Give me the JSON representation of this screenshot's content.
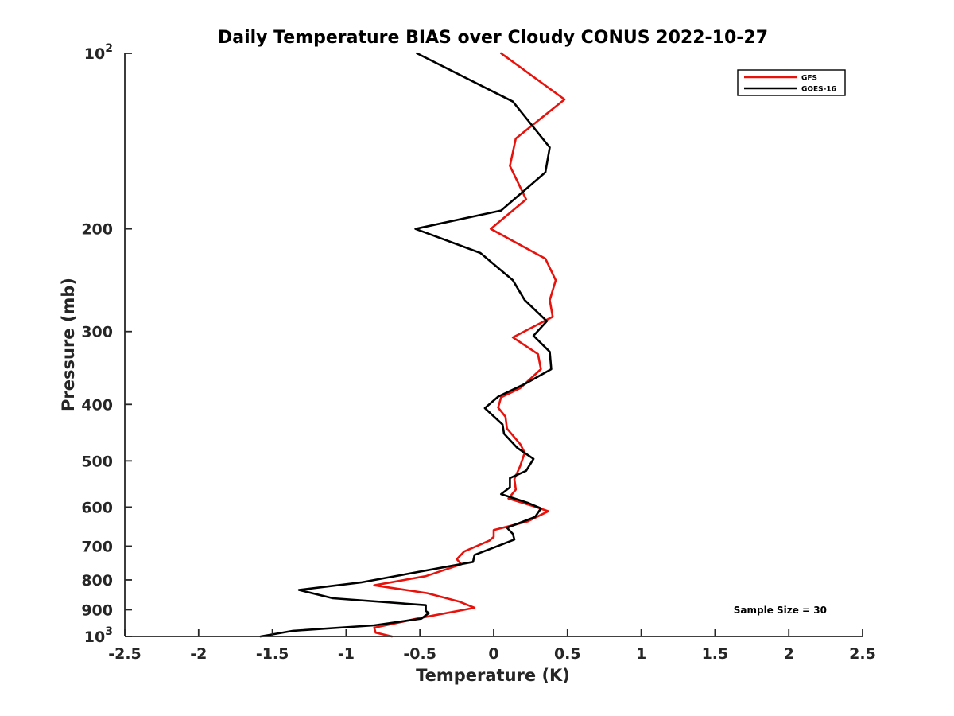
{
  "chart_data": {
    "type": "line",
    "title": "Daily Temperature BIAS over Cloudy CONUS 2022-10-27",
    "xlabel": "Temperature (K)",
    "ylabel": "Pressure (mb)",
    "xlim": [
      -2.5,
      2.5
    ],
    "ylim": [
      100,
      1000
    ],
    "y_scale": "log",
    "y_reversed": true,
    "x_ticks": [
      -2.5,
      -2,
      -1.5,
      -1,
      -0.5,
      0,
      0.5,
      1,
      1.5,
      2,
      2.5
    ],
    "x_tick_labels": [
      "-2.5",
      "-2",
      "-1.5",
      "-1",
      "-0.5",
      "0",
      "0.5",
      "1",
      "1.5",
      "2",
      "2.5"
    ],
    "y_ticks": [
      {
        "value": 100,
        "base": "10",
        "exp": "2"
      },
      {
        "value": 200,
        "label": "200"
      },
      {
        "value": 300,
        "label": "300"
      },
      {
        "value": 400,
        "label": "400"
      },
      {
        "value": 500,
        "label": "500"
      },
      {
        "value": 600,
        "label": "600"
      },
      {
        "value": 700,
        "label": "700"
      },
      {
        "value": 800,
        "label": "800"
      },
      {
        "value": 900,
        "label": "900"
      },
      {
        "value": 1000,
        "base": "10",
        "exp": "3"
      }
    ],
    "grid": false,
    "legend_position": "top-right",
    "annotation": "Sample Size = 30",
    "series": [
      {
        "name": "GFS",
        "color": "#e8120c",
        "points": [
          [
            0.05,
            100
          ],
          [
            0.48,
            120
          ],
          [
            0.15,
            140
          ],
          [
            0.11,
            156
          ],
          [
            0.22,
            178
          ],
          [
            -0.02,
            200
          ],
          [
            0.35,
            225
          ],
          [
            0.42,
            245
          ],
          [
            0.38,
            265
          ],
          [
            0.4,
            283
          ],
          [
            0.13,
            307
          ],
          [
            0.3,
            328
          ],
          [
            0.32,
            348
          ],
          [
            0.18,
            375
          ],
          [
            0.05,
            389
          ],
          [
            0.03,
            405
          ],
          [
            0.08,
            420
          ],
          [
            0.09,
            440
          ],
          [
            0.18,
            468
          ],
          [
            0.21,
            484
          ],
          [
            0.18,
            510
          ],
          [
            0.14,
            537
          ],
          [
            0.15,
            560
          ],
          [
            0.1,
            580
          ],
          [
            0.27,
            598
          ],
          [
            0.37,
            610
          ],
          [
            0.23,
            635
          ],
          [
            0.0,
            657
          ],
          [
            0.0,
            675
          ],
          [
            -0.03,
            685
          ],
          [
            -0.2,
            715
          ],
          [
            -0.25,
            737
          ],
          [
            -0.22,
            752
          ],
          [
            -0.46,
            788
          ],
          [
            -0.81,
            817
          ],
          [
            -0.45,
            843
          ],
          [
            -0.23,
            872
          ],
          [
            -0.13,
            893
          ],
          [
            -0.51,
            931
          ],
          [
            -0.81,
            966
          ],
          [
            -0.8,
            985
          ],
          [
            -0.69,
            1000
          ]
        ]
      },
      {
        "name": "GOES-16",
        "color": "#000000",
        "points": [
          [
            -0.52,
            100
          ],
          [
            0.13,
            121
          ],
          [
            0.38,
            145
          ],
          [
            0.35,
            160
          ],
          [
            0.05,
            186
          ],
          [
            -0.53,
            200
          ],
          [
            -0.09,
            220
          ],
          [
            0.13,
            245
          ],
          [
            0.21,
            265
          ],
          [
            0.36,
            288
          ],
          [
            0.27,
            305
          ],
          [
            0.38,
            325
          ],
          [
            0.39,
            348
          ],
          [
            0.22,
            368
          ],
          [
            0.03,
            388
          ],
          [
            -0.06,
            406
          ],
          [
            -0.01,
            417
          ],
          [
            0.06,
            433
          ],
          [
            0.07,
            449
          ],
          [
            0.16,
            475
          ],
          [
            0.27,
            496
          ],
          [
            0.22,
            520
          ],
          [
            0.11,
            535
          ],
          [
            0.11,
            555
          ],
          [
            0.05,
            570
          ],
          [
            0.23,
            590
          ],
          [
            0.32,
            603
          ],
          [
            0.28,
            624
          ],
          [
            0.09,
            651
          ],
          [
            0.13,
            667
          ],
          [
            0.14,
            682
          ],
          [
            -0.13,
            725
          ],
          [
            -0.14,
            745
          ],
          [
            -0.9,
            808
          ],
          [
            -1.32,
            832
          ],
          [
            -1.09,
            860
          ],
          [
            -0.46,
            884
          ],
          [
            -0.46,
            904
          ],
          [
            -0.44,
            912
          ],
          [
            -0.49,
            932
          ],
          [
            -0.81,
            957
          ],
          [
            -1.36,
            978
          ],
          [
            -1.58,
            1000
          ]
        ]
      }
    ]
  }
}
